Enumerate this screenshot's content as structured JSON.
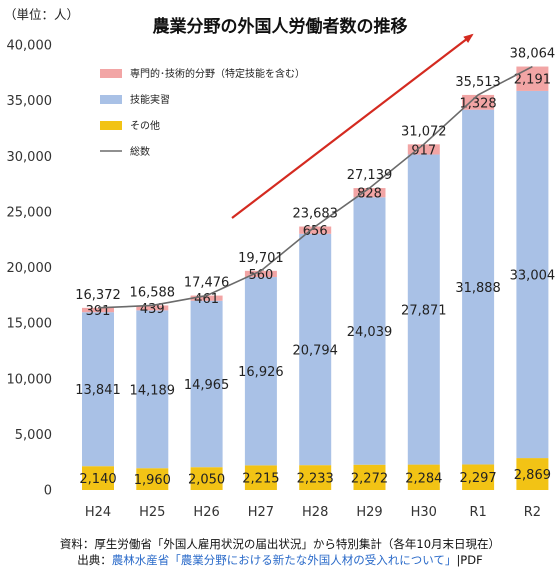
{
  "chart_data": {
    "type": "bar",
    "stacked": true,
    "title": "農業分野の外国人労働者数の推移",
    "unit_label": "（単位：人）",
    "categories": [
      "H24",
      "H25",
      "H26",
      "H27",
      "H28",
      "H29",
      "H30",
      "R1",
      "R2"
    ],
    "ylim": [
      0,
      40000
    ],
    "yticks": [
      0,
      5000,
      10000,
      15000,
      20000,
      25000,
      30000,
      35000,
      40000
    ],
    "ytick_labels": [
      "0",
      "5,000",
      "10,000",
      "15,000",
      "20,000",
      "25,000",
      "30,000",
      "35,000",
      "40,000"
    ],
    "grid": false,
    "legend_position": "top-left",
    "series": [
      {
        "name": "その他",
        "color": "#f2c315",
        "values": [
          2140,
          1960,
          2050,
          2215,
          2233,
          2272,
          2284,
          2297,
          2869
        ],
        "labels": [
          "2,140",
          "1,960",
          "2,050",
          "2,215",
          "2,233",
          "2,272",
          "2,284",
          "2,297",
          "2,869"
        ]
      },
      {
        "name": "技能実習",
        "color": "#a9c1e6",
        "values": [
          13841,
          14189,
          14965,
          16926,
          20794,
          24039,
          27871,
          31888,
          33004
        ],
        "labels": [
          "13,841",
          "14,189",
          "14,965",
          "16,926",
          "20,794",
          "24,039",
          "27,871",
          "31,888",
          "33,004"
        ]
      },
      {
        "name": "専門的･技術的分野（特定技能を含む）",
        "color": "#f2a5a5",
        "values": [
          391,
          439,
          461,
          560,
          656,
          828,
          917,
          1328,
          2191
        ],
        "labels": [
          "391",
          "439",
          "461",
          "560",
          "656",
          "828",
          "917",
          "1,328",
          "2,191"
        ]
      }
    ],
    "total": {
      "name": "総数",
      "type": "line",
      "color": "#6b6b6b",
      "values": [
        16372,
        16588,
        17476,
        19701,
        23683,
        27139,
        31072,
        35513,
        38064
      ],
      "labels": [
        "16,372",
        "16,588",
        "17,476",
        "19,701",
        "23,683",
        "27,139",
        "31,072",
        "35,513",
        "38,064"
      ]
    },
    "trend_arrow_color": "#d42a20"
  },
  "source": {
    "line1": "資料：厚生労働省「外国人雇用状況の届出状況」から特別集計（各年10月末日現在）",
    "citation_prefix": "出典：",
    "citation_link_text": "農林水産省「農業分野における新たな外国人材の受入れについて」",
    "citation_suffix": "|PDF"
  }
}
